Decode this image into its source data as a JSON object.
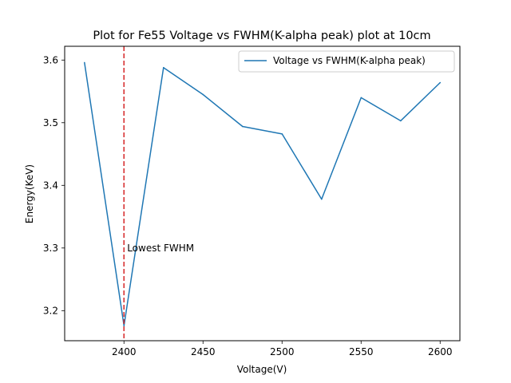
{
  "chart_data": {
    "type": "line",
    "title": "Plot for Fe55 Voltage vs FWHM(K-alpha peak) plot at 10cm",
    "xlabel": "Voltage(V)",
    "ylabel": "Energy(KeV)",
    "xlim": [
      2362.5,
      2612.5
    ],
    "ylim": [
      3.152,
      3.622
    ],
    "xticks": [
      2400,
      2450,
      2500,
      2550,
      2600
    ],
    "yticks": [
      3.2,
      3.3,
      3.4,
      3.5,
      3.6
    ],
    "grid": false,
    "legend_position": "top-right",
    "series": [
      {
        "name": "Voltage vs FWHM(K-alpha peak)",
        "color": "#1f77b4",
        "x": [
          2375,
          2400,
          2425,
          2450,
          2475,
          2500,
          2525,
          2550,
          2575,
          2600
        ],
        "y": [
          3.596,
          3.176,
          3.588,
          3.545,
          3.494,
          3.482,
          3.378,
          3.54,
          3.503,
          3.564
        ]
      }
    ],
    "vline": {
      "x": 2400,
      "color": "#d62728",
      "style": "dashed"
    },
    "annotation": {
      "text": "Lowest FWHM",
      "x": 2402,
      "y": 3.3
    }
  }
}
